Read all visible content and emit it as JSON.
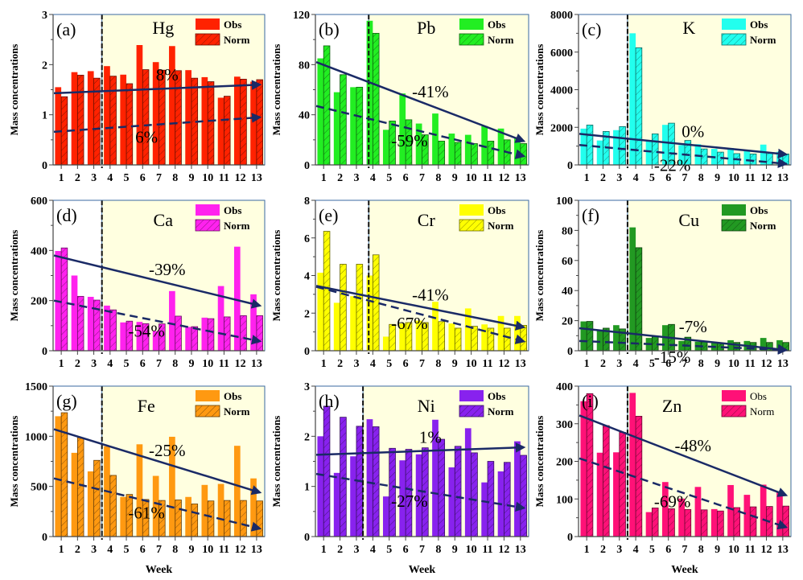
{
  "chart_data": [
    {
      "type": "bar",
      "panel": "(a)",
      "element": "Hg",
      "color": "#ff2200",
      "categories": [
        "1",
        "2",
        "3",
        "4",
        "5",
        "6",
        "7",
        "8",
        "9",
        "10",
        "11",
        "12",
        "13"
      ],
      "series": [
        {
          "name": "Obs",
          "values": [
            1.55,
            1.85,
            1.87,
            1.97,
            1.8,
            2.39,
            2.05,
            2.37,
            1.89,
            1.75,
            1.34,
            1.76,
            1.66
          ]
        },
        {
          "name": "Norm",
          "values": [
            1.36,
            1.79,
            1.73,
            1.77,
            1.62,
            1.9,
            1.89,
            1.88,
            1.73,
            1.66,
            1.37,
            1.71,
            1.7
          ]
        }
      ],
      "trend_lines": [
        {
          "style": "solid",
          "label": "8%",
          "start": [
            1,
            1.43
          ],
          "end": [
            13,
            1.6
          ]
        },
        {
          "style": "dashed",
          "label": "6%",
          "start": [
            1,
            0.66
          ],
          "end": [
            13,
            0.95
          ]
        }
      ],
      "separator_week": 3.5,
      "ylim": [
        0,
        3
      ],
      "yticks": [
        0,
        1,
        2,
        3
      ],
      "xlabel": "",
      "ylabel": "Mass concentrations",
      "legend": "top-right",
      "legend_bold": true,
      "legend_entries": [
        "Obs",
        "Norm"
      ]
    },
    {
      "type": "bar",
      "panel": "(b)",
      "element": "Pb",
      "color": "#22ee22",
      "categories": [
        "1",
        "2",
        "3",
        "4",
        "5",
        "6",
        "7",
        "8",
        "9",
        "10",
        "11",
        "12",
        "13"
      ],
      "series": [
        {
          "name": "Obs",
          "values": [
            85,
            58,
            62,
            115,
            28,
            57,
            33,
            41,
            25,
            24,
            31,
            29,
            22
          ]
        },
        {
          "name": "Norm",
          "values": [
            95,
            72,
            62,
            105,
            35,
            36,
            24,
            19,
            18,
            17,
            19,
            20,
            17
          ]
        }
      ],
      "trend_lines": [
        {
          "style": "solid",
          "label": "-41%",
          "start": [
            1,
            82
          ],
          "end": [
            13,
            19
          ]
        },
        {
          "style": "dashed",
          "label": "-59%",
          "start": [
            1,
            47
          ],
          "end": [
            13,
            7
          ]
        }
      ],
      "separator_week": 3.75,
      "ylim": [
        0,
        120
      ],
      "yticks": [
        0,
        40,
        80,
        120
      ],
      "xlabel": "",
      "ylabel": "Mass concentrations",
      "legend": "top-right",
      "legend_bold": true,
      "legend_entries": [
        "Obs",
        "Norm"
      ]
    },
    {
      "type": "bar",
      "panel": "(c)",
      "element": "K",
      "color": "#22ffee",
      "categories": [
        "1",
        "2",
        "3",
        "4",
        "5",
        "6",
        "7",
        "8",
        "9",
        "10",
        "11",
        "12",
        "13"
      ],
      "series": [
        {
          "name": "Obs",
          "values": [
            1930,
            1300,
            1850,
            7000,
            1250,
            2130,
            1050,
            1100,
            850,
            900,
            800,
            1080,
            700
          ]
        },
        {
          "name": "Norm",
          "values": [
            2120,
            1780,
            2040,
            6230,
            1650,
            2220,
            1300,
            850,
            680,
            600,
            580,
            640,
            580
          ]
        }
      ],
      "trend_lines": [
        {
          "style": "solid",
          "label": "0%",
          "start": [
            1,
            1650
          ],
          "end": [
            13,
            560
          ]
        },
        {
          "style": "dashed",
          "label": "-22%",
          "start": [
            1,
            1060
          ],
          "end": [
            13,
            60
          ]
        }
      ],
      "separator_week": 3.5,
      "ylim": [
        0,
        8000
      ],
      "yticks": [
        0,
        2000,
        4000,
        6000,
        8000
      ],
      "xlabel": "",
      "ylabel": "Mass concentrations",
      "legend": "top-right",
      "legend_bold": true,
      "legend_entries": [
        "Obs",
        "Norm"
      ]
    },
    {
      "type": "bar",
      "panel": "(d)",
      "element": "Ca",
      "color": "#ff22ee",
      "categories": [
        "1",
        "2",
        "3",
        "4",
        "5",
        "6",
        "7",
        "8",
        "9",
        "10",
        "11",
        "12",
        "13"
      ],
      "series": [
        {
          "name": "Obs",
          "values": [
            398,
            300,
            215,
            180,
            113,
            115,
            78,
            238,
            95,
            132,
            258,
            415,
            225
          ]
        },
        {
          "name": "Norm",
          "values": [
            410,
            217,
            202,
            163,
            118,
            108,
            107,
            138,
            96,
            128,
            135,
            140,
            140
          ]
        }
      ],
      "trend_lines": [
        {
          "style": "solid",
          "label": "-39%",
          "start": [
            1,
            380
          ],
          "end": [
            13,
            180
          ]
        },
        {
          "style": "dashed",
          "label": "-54%",
          "start": [
            1,
            200
          ],
          "end": [
            13,
            38
          ]
        }
      ],
      "separator_week": 3.5,
      "ylim": [
        0,
        600
      ],
      "yticks": [
        0,
        200,
        400,
        600
      ],
      "xlabel": "",
      "ylabel": "Mass concentrations",
      "legend": "top-right",
      "legend_bold": true,
      "legend_entries": [
        "Obs",
        "Norm"
      ]
    },
    {
      "type": "bar",
      "panel": "(e)",
      "element": "Cr",
      "color": "#ffff00",
      "categories": [
        "1",
        "2",
        "3",
        "4",
        "5",
        "6",
        "7",
        "8",
        "9",
        "10",
        "11",
        "12",
        "13"
      ],
      "series": [
        {
          "name": "Obs",
          "values": [
            4.15,
            2.55,
            2.9,
            4.0,
            0.75,
            1.45,
            1.6,
            2.6,
            1.45,
            2.25,
            1.4,
            1.85,
            1.85
          ]
        },
        {
          "name": "Norm",
          "values": [
            6.35,
            4.6,
            4.6,
            5.1,
            1.4,
            1.5,
            1.5,
            1.55,
            1.2,
            1.3,
            1.2,
            1.2,
            1.35
          ]
        }
      ],
      "trend_lines": [
        {
          "style": "solid",
          "label": "-41%",
          "start": [
            1,
            3.45
          ],
          "end": [
            13,
            1.25
          ]
        },
        {
          "style": "dashed",
          "label": "-67%",
          "start": [
            1,
            3.4
          ],
          "end": [
            13,
            0.5
          ]
        }
      ],
      "separator_week": 3.75,
      "ylim": [
        0,
        8
      ],
      "yticks": [
        0,
        2,
        4,
        6,
        8
      ],
      "xlabel": "",
      "ylabel": "Mass concentrations",
      "legend": "top-right",
      "legend_bold": true,
      "legend_entries": [
        "Obs",
        "Norm"
      ]
    },
    {
      "type": "bar",
      "panel": "(f)",
      "element": "Cu",
      "color": "#229922",
      "categories": [
        "1",
        "2",
        "3",
        "4",
        "5",
        "6",
        "7",
        "8",
        "9",
        "10",
        "11",
        "12",
        "13"
      ],
      "series": [
        {
          "name": "Obs",
          "values": [
            19.5,
            14,
            17,
            82,
            8.5,
            17,
            6.5,
            6,
            5.5,
            7,
            6.5,
            8.5,
            7
          ]
        },
        {
          "name": "Norm",
          "values": [
            19.5,
            15,
            14.5,
            68.5,
            9.5,
            17.5,
            9,
            6,
            5,
            5.5,
            5.5,
            5.5,
            5.5
          ]
        }
      ],
      "trend_lines": [
        {
          "style": "solid",
          "label": "-7%",
          "start": [
            1,
            15
          ],
          "end": [
            13,
            0.5
          ]
        },
        {
          "style": "dashed",
          "label": "-15%",
          "start": [
            1,
            6.5
          ],
          "end": [
            13,
            0.5
          ]
        }
      ],
      "separator_week": 3.5,
      "ylim": [
        0,
        100
      ],
      "yticks": [
        0,
        20,
        40,
        60,
        80,
        100
      ],
      "xlabel": "",
      "ylabel": "Mass concentrations",
      "legend": "top-right",
      "legend_bold": true,
      "legend_entries": [
        "Obs",
        "Norm"
      ]
    },
    {
      "type": "bar",
      "panel": "(g)",
      "element": "Fe",
      "color": "#ff9911",
      "categories": [
        "1",
        "2",
        "3",
        "4",
        "5",
        "6",
        "7",
        "8",
        "9",
        "10",
        "11",
        "12",
        "13"
      ],
      "series": [
        {
          "name": "Obs",
          "values": [
            1200,
            835,
            650,
            900,
            395,
            920,
            605,
            995,
            395,
            515,
            525,
            905,
            580
          ]
        },
        {
          "name": "Norm",
          "values": [
            1235,
            985,
            760,
            610,
            420,
            370,
            360,
            365,
            325,
            355,
            360,
            360,
            355
          ]
        }
      ],
      "trend_lines": [
        {
          "style": "solid",
          "label": "-25%",
          "start": [
            1,
            1070
          ],
          "end": [
            13,
            440
          ]
        },
        {
          "style": "dashed",
          "label": "-61%",
          "start": [
            1,
            580
          ],
          "end": [
            13,
            80
          ]
        }
      ],
      "separator_week": 3.5,
      "ylim": [
        0,
        1500
      ],
      "yticks": [
        0,
        500,
        1000,
        1500
      ],
      "xlabel": "Week",
      "ylabel": "Mass concentrations",
      "legend": "top-right",
      "legend_bold": true,
      "legend_entries": [
        "Obs",
        "Norm"
      ]
    },
    {
      "type": "bar",
      "panel": "(h)",
      "element": "Ni",
      "color": "#8822ee",
      "categories": [
        "1",
        "2",
        "3",
        "4",
        "5",
        "6",
        "7",
        "8",
        "9",
        "10",
        "11",
        "12",
        "13"
      ],
      "series": [
        {
          "name": "Obs",
          "values": [
            2.0,
            1.27,
            1.6,
            2.34,
            0.8,
            1.52,
            1.64,
            2.33,
            1.38,
            2.16,
            1.08,
            1.3,
            1.9
          ]
        },
        {
          "name": "Norm",
          "values": [
            2.6,
            2.38,
            2.2,
            2.19,
            1.76,
            1.74,
            1.77,
            1.94,
            1.8,
            1.67,
            1.5,
            1.48,
            1.62
          ]
        }
      ],
      "trend_lines": [
        {
          "style": "solid",
          "label": "1%",
          "start": [
            1,
            1.63
          ],
          "end": [
            13,
            1.78
          ]
        },
        {
          "style": "dashed",
          "label": "-27%",
          "start": [
            1,
            1.25
          ],
          "end": [
            13,
            0.57
          ]
        }
      ],
      "separator_week": 3.4,
      "ylim": [
        0,
        3
      ],
      "yticks": [
        0,
        1,
        2,
        3
      ],
      "xlabel": "Week",
      "ylabel": "Mass concentrations",
      "legend": "top-right",
      "legend_bold": true,
      "legend_entries": [
        "Obs",
        "Norm"
      ]
    },
    {
      "type": "bar",
      "panel": "(i)",
      "element": "Zn",
      "color": "#ff1177",
      "categories": [
        "1",
        "2",
        "3",
        "4",
        "5",
        "6",
        "7",
        "8",
        "9",
        "10",
        "11",
        "12",
        "13"
      ],
      "series": [
        {
          "name": "Obs",
          "values": [
            360,
            223,
            224,
            382,
            65,
            145,
            101,
            132,
            73,
            137,
            111,
            138,
            118
          ]
        },
        {
          "name": "Norm",
          "values": [
            380,
            295,
            277,
            320,
            76,
            74,
            72,
            71,
            68,
            77,
            79,
            80,
            81
          ]
        }
      ],
      "trend_lines": [
        {
          "style": "solid",
          "label": "-48%",
          "start": [
            1,
            322
          ],
          "end": [
            13,
            110
          ]
        },
        {
          "style": "dashed",
          "label": "-69%",
          "start": [
            1,
            208
          ],
          "end": [
            13,
            25
          ]
        }
      ],
      "separator_week": 3.5,
      "ylim": [
        0,
        400
      ],
      "yticks": [
        0,
        100,
        200,
        300,
        400
      ],
      "xlabel": "Week",
      "ylabel": "Mass concentrations",
      "legend": "top-right",
      "legend_bold": false,
      "legend_entries": [
        "Obs",
        "Norm"
      ]
    }
  ],
  "style": {
    "trend_color": "#1a2a66",
    "shade_color": "#ffffe0",
    "separator_color": "#111111"
  }
}
